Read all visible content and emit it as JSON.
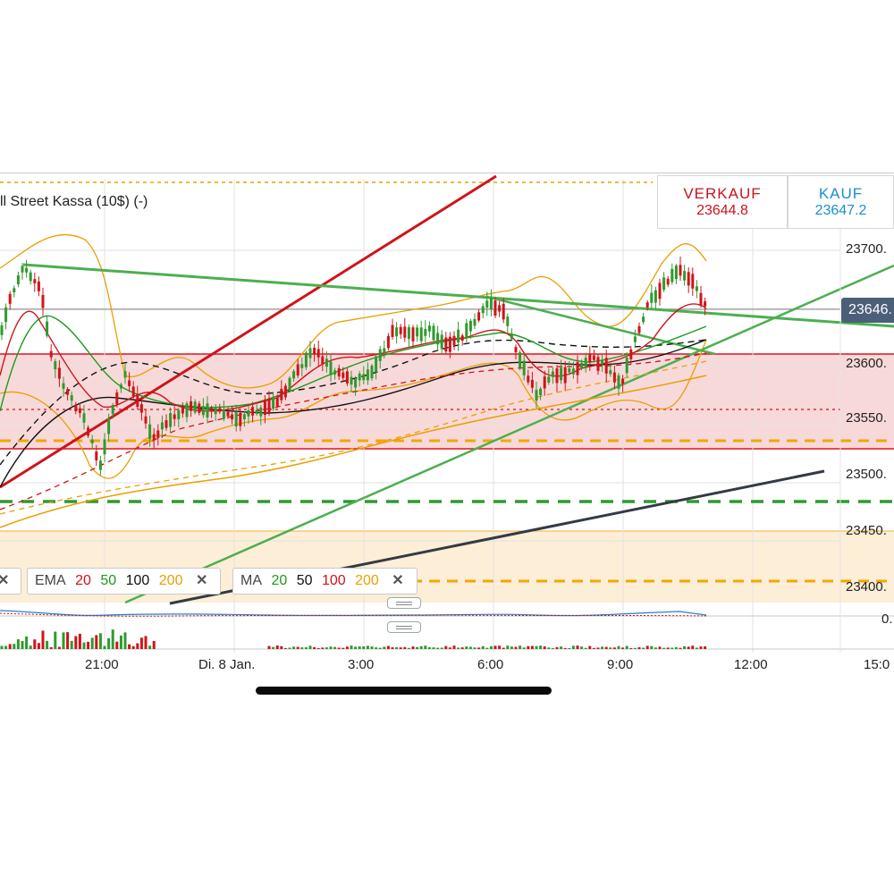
{
  "instrument": {
    "title": "ll Street Kassa (10$) (-)"
  },
  "quote": {
    "sell_label": "VERKAUF",
    "sell_price": "23644.8",
    "buy_label": "KAUF",
    "buy_price": "23647.2"
  },
  "current_price_tag": "23646.",
  "y_axis": {
    "ticks": [
      "23700.",
      "23650.",
      "23600.",
      "23550.",
      "23500.",
      "23450.",
      "23400."
    ],
    "oscillator_tick": "0."
  },
  "x_axis": {
    "ticks": [
      "21:00",
      "Di. 8 Jan.",
      "3:00",
      "6:00",
      "9:00",
      "12:00",
      "15:0"
    ]
  },
  "legends": {
    "ema": {
      "label": "EMA",
      "periods": [
        "20",
        "50",
        "100",
        "200"
      ],
      "colors": [
        "#d0131b",
        "#1a9a1a",
        "#111111",
        "#e8a000"
      ]
    },
    "ma": {
      "label": "MA",
      "periods": [
        "20",
        "50",
        "100",
        "200"
      ],
      "colors": [
        "#1a9a1a",
        "#111111",
        "#d0131b",
        "#e8a000"
      ]
    }
  },
  "colors": {
    "up": "#2e9a2e",
    "down": "#d0131b",
    "trend_green": "#4caf50",
    "trend_red": "#d0131b",
    "band": "#e8a000"
  }
}
